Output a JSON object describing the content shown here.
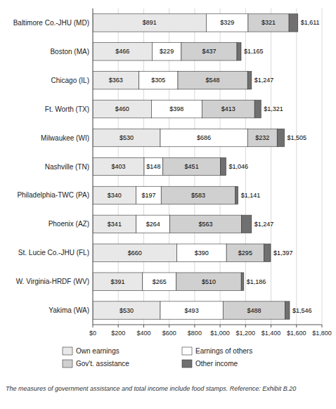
{
  "chart_data": {
    "type": "bar",
    "orientation": "horizontal",
    "stacked": true,
    "categories": [
      "Baltimore Co.-JHU (MD)",
      "Boston (MA)",
      "Chicago (IL)",
      "Ft. Worth (TX)",
      "Milwaukee (WI)",
      "Nashville (TN)",
      "Philadelphia-TWC (PA)",
      "Phoenix (AZ)",
      "St. Lucie Co.-JHU (FL)",
      "W. Virginia-HRDF (WV)",
      "Yakima (WA)"
    ],
    "series": [
      {
        "name": "Own earnings",
        "color": "#e8e8e8",
        "values": [
          891,
          466,
          363,
          460,
          530,
          403,
          340,
          341,
          660,
          391,
          530
        ],
        "value_labels": [
          "$891",
          "$466",
          "$363",
          "$460",
          "$530",
          "$403",
          "$340",
          "$341",
          "$660",
          "$391",
          "$530"
        ]
      },
      {
        "name": "Earnings of others",
        "color": "#ffffff",
        "values": [
          329,
          229,
          305,
          398,
          686,
          148,
          197,
          264,
          390,
          265,
          493
        ],
        "value_labels": [
          "$329",
          "$229",
          "$305",
          "$398",
          "$686",
          "$148",
          "$197",
          "$264",
          "$390",
          "$265",
          "$493"
        ]
      },
      {
        "name": "Gov't. assistance",
        "color": "#d0d0d0",
        "values": [
          321,
          437,
          548,
          413,
          232,
          451,
          583,
          563,
          295,
          510,
          488
        ],
        "value_labels": [
          "$321",
          "$437",
          "$548",
          "$413",
          "$232",
          "$451",
          "$583",
          "$563",
          "$295",
          "$510",
          "$488"
        ]
      },
      {
        "name": "Other income",
        "color": "#707070",
        "values": [
          70,
          33,
          31,
          50,
          57,
          44,
          21,
          79,
          52,
          20,
          35
        ]
      }
    ],
    "totals": [
      1611,
      1165,
      1247,
      1321,
      1505,
      1046,
      1141,
      1247,
      1397,
      1186,
      1546
    ],
    "total_labels": [
      "$1,611",
      "$1,165",
      "$1,247",
      "$1,321",
      "$1,505",
      "$1,046",
      "$1,141",
      "$1,247",
      "$1,397",
      "$1,186",
      "$1,546"
    ],
    "data_labels": true,
    "xlim": [
      0,
      1800
    ],
    "xticks": [
      {
        "value": 0,
        "label": "$0"
      },
      {
        "value": 200,
        "label": "$200"
      },
      {
        "value": 400,
        "label": "$400"
      },
      {
        "value": 600,
        "label": "$600"
      },
      {
        "value": 800,
        "label": "$800"
      },
      {
        "value": 1000,
        "label": "$1,000"
      },
      {
        "value": 1200,
        "label": "$1,200"
      },
      {
        "value": 1400,
        "label": "$1,400"
      },
      {
        "value": 1600,
        "label": "$1,600"
      },
      {
        "value": 1800,
        "label": "$1,800"
      }
    ],
    "grid": true,
    "legend": "bottom",
    "footnote": "The measures of government assistance and total income include food stamps.  Reference: Exhibit B.20"
  }
}
